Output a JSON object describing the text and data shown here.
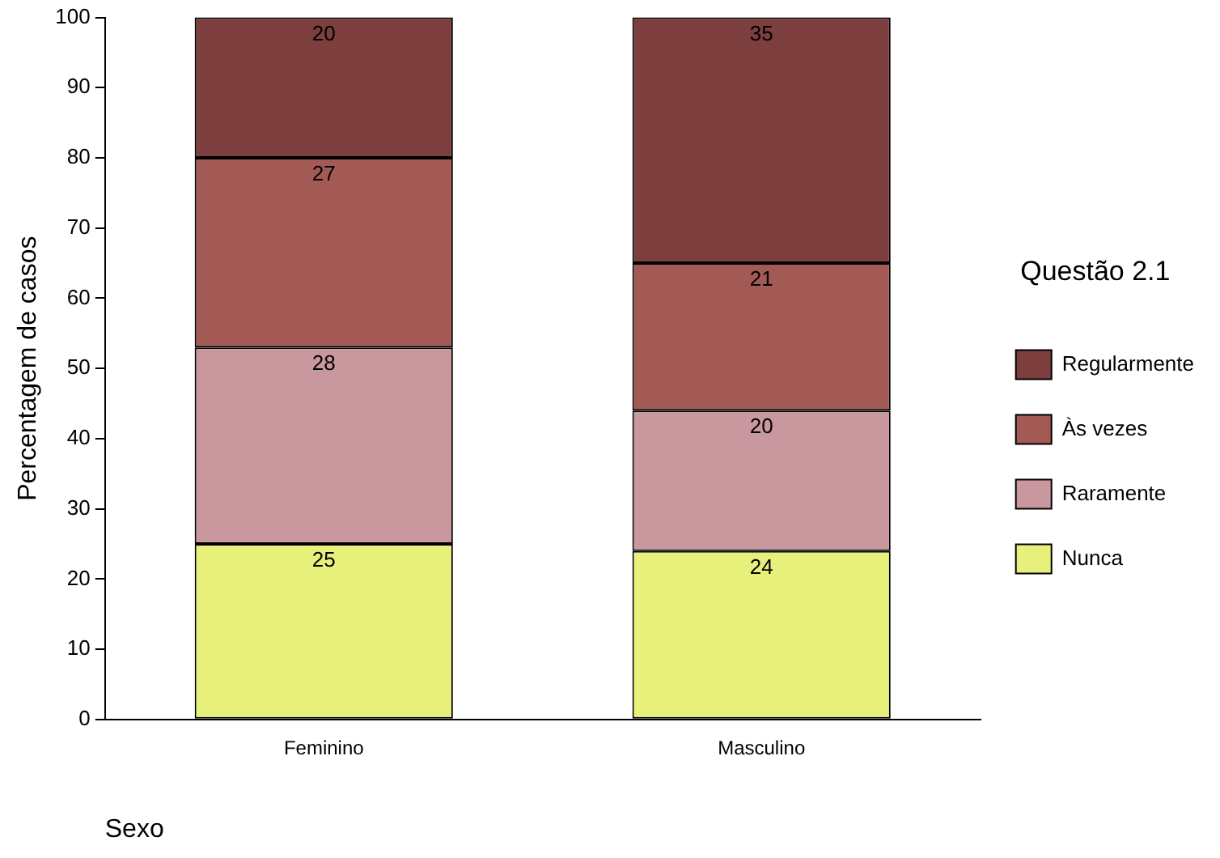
{
  "chart_data": {
    "type": "bar",
    "stacked": true,
    "xlabel": "Sexo",
    "ylabel": "Percentagem de casos",
    "legend_title": "Questão 2.1",
    "legend": "right",
    "grid": false,
    "data_labels": true,
    "categories": [
      "Feminino",
      "Masculino"
    ],
    "ylim": [
      0,
      100
    ],
    "yticks": [
      0,
      10,
      20,
      30,
      40,
      50,
      60,
      70,
      80,
      90,
      100
    ],
    "series": [
      {
        "name": "Nunca",
        "color": "#e8f07c",
        "values": [
          25,
          24
        ]
      },
      {
        "name": "Raramente",
        "color": "#c9989e",
        "values": [
          28,
          20
        ]
      },
      {
        "name": "Às vezes",
        "color": "#a35a55",
        "values": [
          27,
          21
        ]
      },
      {
        "name": "Regularmente",
        "color": "#7d3e3e",
        "values": [
          20,
          35
        ]
      }
    ]
  }
}
